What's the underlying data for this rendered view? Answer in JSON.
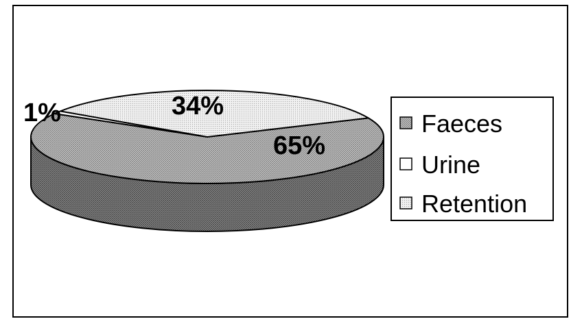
{
  "chart_data": {
    "type": "pie",
    "style": "3d",
    "categories": [
      "Faeces",
      "Urine",
      "Retention"
    ],
    "values": [
      65,
      1,
      34
    ],
    "data_labels": [
      "65%",
      "1%",
      "34%"
    ],
    "legend": {
      "entries": [
        "Faeces",
        "Urine",
        "Retention"
      ],
      "placement": "right"
    },
    "title": "",
    "xlabel": "",
    "ylabel": ""
  }
}
